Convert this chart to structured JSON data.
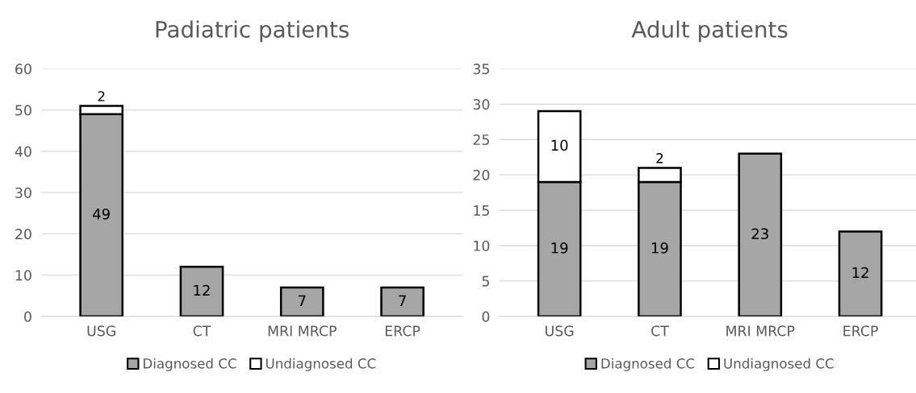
{
  "chart_data": [
    {
      "type": "bar",
      "title": "Padiatric patients",
      "categories": [
        "USG",
        "CT",
        "MRI MRCP",
        "ERCP"
      ],
      "stacked": true,
      "ylim": [
        0,
        60
      ],
      "yticks": [
        0,
        10,
        20,
        30,
        40,
        50,
        60
      ],
      "grid": "y",
      "legend": "bottom",
      "series": [
        {
          "name": "Diagnosed CC",
          "color": "#a6a6a6",
          "values": [
            49,
            12,
            7,
            7
          ],
          "value_labels": [
            "49",
            "12",
            "7",
            "7"
          ]
        },
        {
          "name": "Undiagnosed CC",
          "color": "#ffffff",
          "values": [
            2,
            0,
            0,
            0
          ],
          "value_labels": [
            "2",
            null,
            null,
            null
          ]
        }
      ]
    },
    {
      "type": "bar",
      "title": "Adult patients",
      "categories": [
        "USG",
        "CT",
        "MRI MRCP",
        "ERCP"
      ],
      "stacked": true,
      "ylim": [
        0,
        35
      ],
      "yticks": [
        0,
        5,
        10,
        15,
        20,
        25,
        30,
        35
      ],
      "grid": "y",
      "legend": "bottom",
      "series": [
        {
          "name": "Diagnosed CC",
          "color": "#a6a6a6",
          "values": [
            19,
            19,
            23,
            12
          ],
          "value_labels": [
            "19",
            "19",
            "23",
            "12"
          ]
        },
        {
          "name": "Undiagnosed CC",
          "color": "#ffffff",
          "values": [
            10,
            2,
            0,
            0
          ],
          "value_labels": [
            "10",
            "2",
            null,
            null
          ]
        }
      ]
    }
  ]
}
